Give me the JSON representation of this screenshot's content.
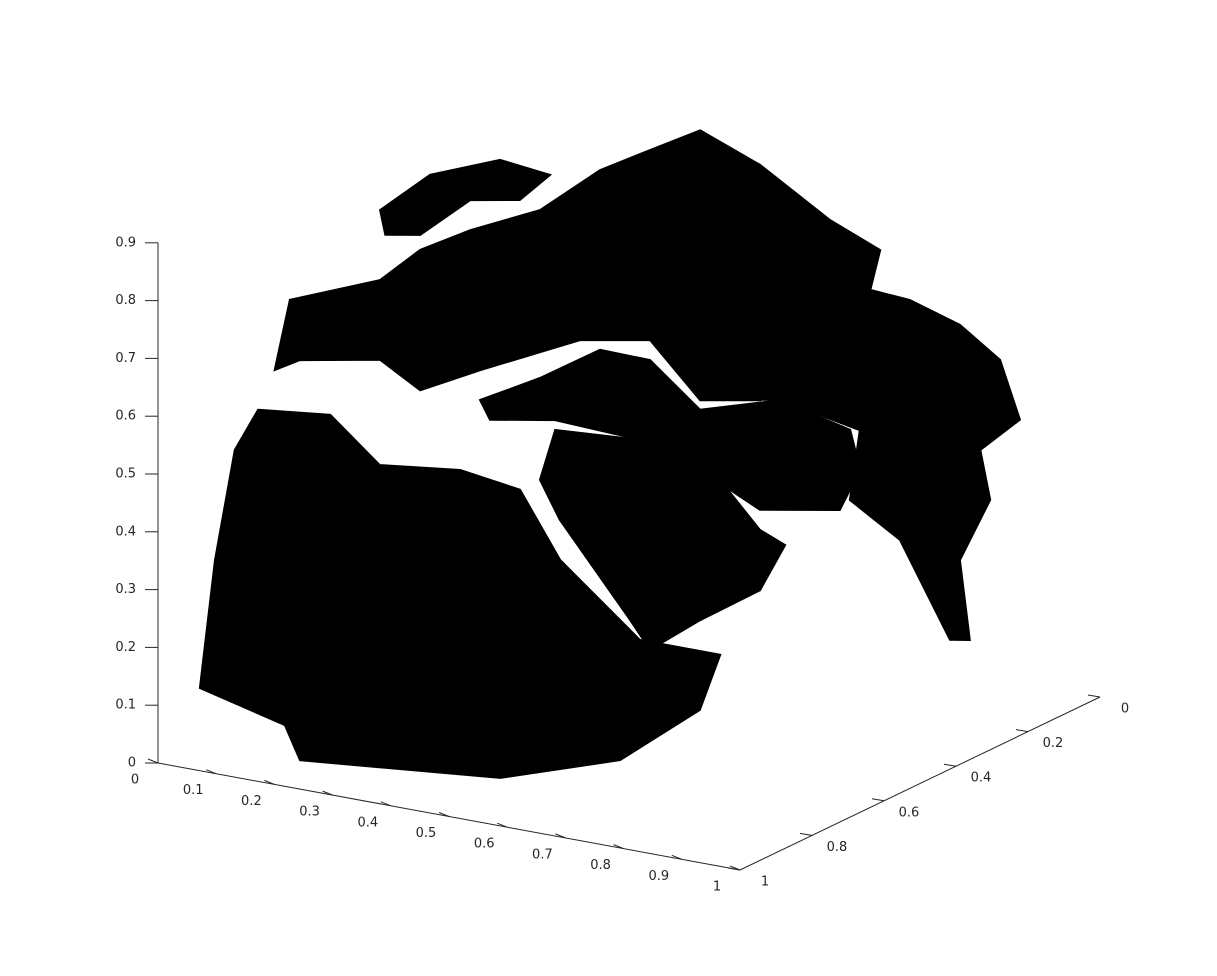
{
  "chart_data": {
    "type": "scatter3d",
    "color": "#000000",
    "xlim": [
      0,
      1
    ],
    "ylim": [
      0,
      1
    ],
    "zlim": [
      0,
      0.9
    ],
    "xticks": [
      0,
      0.1,
      0.2,
      0.3,
      0.4,
      0.5,
      0.6,
      0.7,
      0.8,
      0.9,
      1
    ],
    "yticks": [
      0,
      0.2,
      0.4,
      0.6,
      0.8,
      1
    ],
    "zticks": [
      0,
      0.1,
      0.2,
      0.3,
      0.4,
      0.5,
      0.6,
      0.7,
      0.8,
      0.9
    ],
    "regions": [
      {
        "x": [
          0.172,
          0.296,
          0.381,
          0.519,
          0.622,
          0.691,
          0.828,
          0.966,
          0.931,
          0.794,
          0.588,
          0.244,
          0.218,
          0.072,
          0.098,
          0.132
        ],
        "y": [
          1,
          1,
          1,
          1,
          1,
          1,
          1,
          1,
          1,
          1,
          1,
          1,
          1,
          1,
          1,
          1
        ],
        "z": [
          0.643,
          0.657,
          0.586,
          0.603,
          0.588,
          0.479,
          0.366,
          0.366,
          0.264,
          0.152,
          0.083,
          0.05,
          0.106,
          0.143,
          0.369,
          0.566
        ]
      },
      {
        "x": [
          0.435,
          0.581,
          0.718,
          0.787,
          0.83,
          0.787,
          0.684,
          0.598,
          0.564,
          0.443,
          0.409
        ],
        "y": [
          0.6,
          0.6,
          0.6,
          0.6,
          0.6,
          0.6,
          0.6,
          0.6,
          0.6,
          0.6,
          0.6
        ],
        "z": [
          0.537,
          0.547,
          0.503,
          0.429,
          0.411,
          0.325,
          0.254,
          0.187,
          0.232,
          0.383,
          0.446
        ]
      },
      {
        "x": [
          0.306,
          0.409,
          0.512,
          0.598,
          0.684,
          0.821,
          0.942,
          0.959,
          0.924,
          0.787,
          0.684,
          0.581,
          0.435,
          0.323
        ],
        "y": [
          0.6,
          0.6,
          0.6,
          0.6,
          0.6,
          0.6,
          0.6,
          0.6,
          0.6,
          0.6,
          0.6,
          0.6,
          0.6,
          0.6
        ],
        "z": [
          0.565,
          0.622,
          0.69,
          0.688,
          0.618,
          0.66,
          0.631,
          0.565,
          0.489,
          0.464,
          0.514,
          0.547,
          0.554,
          0.534
        ]
      },
      {
        "x": [
          0.015,
          0.041,
          0.196,
          0.265,
          0.351,
          0.471,
          0.574,
          0.66,
          0.746,
          0.849,
          0.849,
          0.746,
          0.66,
          0.54,
          0.368,
          0.265,
          0.196,
          0.058
        ],
        "y": [
          0.7,
          0.7,
          0.7,
          0.7,
          0.7,
          0.7,
          0.7,
          0.7,
          0.7,
          0.7,
          0.7,
          0.7,
          0.7,
          0.7,
          0.7,
          0.7,
          0.7,
          0.7
        ],
        "z": [
          0.593,
          0.719,
          0.782,
          0.847,
          0.897,
          0.954,
          1.042,
          1.093,
          1.143,
          1.102,
          0.695,
          0.676,
          0.764,
          0.742,
          0.658,
          0.604,
          0.644,
          0.618
        ]
      },
      {
        "x": [
          0.196,
          0.282,
          0.402,
          0.488,
          0.436,
          0.351,
          0.265,
          0.205
        ],
        "y": [
          0.7,
          0.7,
          0.7,
          0.7,
          0.7,
          0.7,
          0.7,
          0.7
        ],
        "z": [
          0.903,
          0.98,
          1.028,
          1.018,
          0.965,
          0.949,
          0.873,
          0.862
        ]
      },
      {
        "x": [
          0.54,
          0.66,
          0.746,
          0.729,
          0.797,
          0.883,
          0.952,
          0.986,
          0.918,
          0.935,
          0.883,
          0.9,
          0.866,
          0.78,
          0.694,
          0.711,
          0.574,
          0.54
        ],
        "y": [
          0.2,
          0.2,
          0.2,
          0.2,
          0.2,
          0.2,
          0.2,
          0.2,
          0.2,
          0.2,
          0.2,
          0.2,
          0.2,
          0.2,
          0.2,
          0.2,
          0.2,
          0.2
        ],
        "z": [
          0.895,
          0.822,
          0.786,
          0.714,
          0.709,
          0.682,
          0.634,
          0.537,
          0.472,
          0.389,
          0.275,
          0.14,
          0.134,
          0.291,
          0.344,
          0.468,
          0.495,
          0.489
        ]
      }
    ]
  }
}
